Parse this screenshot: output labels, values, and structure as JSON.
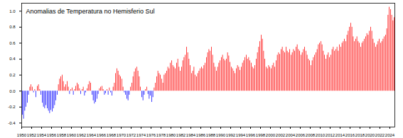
{
  "chart_data": {
    "type": "bar",
    "title": "Anomalias de Temperatura no Hemisferio Sul",
    "x": [
      1950,
      1950.25,
      1950.5,
      1950.75,
      1951,
      1951.25,
      1951.5,
      1951.75,
      1952,
      1952.25,
      1952.5,
      1952.75,
      1953,
      1953.25,
      1953.5,
      1953.75,
      1954,
      1954.25,
      1954.5,
      1954.75,
      1955,
      1955.25,
      1955.5,
      1955.75,
      1956,
      1956.25,
      1956.5,
      1956.75,
      1957,
      1957.25,
      1957.5,
      1957.75,
      1958,
      1958.25,
      1958.5,
      1958.75,
      1959,
      1959.25,
      1959.5,
      1959.75,
      1960,
      1960.25,
      1960.5,
      1960.75,
      1961,
      1961.25,
      1961.5,
      1961.75,
      1962,
      1962.25,
      1962.5,
      1962.75,
      1963,
      1963.25,
      1963.5,
      1963.75,
      1964,
      1964.25,
      1964.5,
      1964.75,
      1965,
      1965.25,
      1965.5,
      1965.75,
      1966,
      1966.25,
      1966.5,
      1966.75,
      1967,
      1967.25,
      1967.5,
      1967.75,
      1968,
      1968.25,
      1968.5,
      1968.75,
      1969,
      1969.25,
      1969.5,
      1969.75,
      1970,
      1970.25,
      1970.5,
      1970.75,
      1971,
      1971.25,
      1971.5,
      1971.75,
      1972,
      1972.25,
      1972.5,
      1972.75,
      1973,
      1973.25,
      1973.5,
      1973.75,
      1974,
      1974.25,
      1974.5,
      1974.75,
      1975,
      1975.25,
      1975.5,
      1975.75,
      1976,
      1976.25,
      1976.5,
      1976.75,
      1977,
      1977.25,
      1977.5,
      1977.75,
      1978,
      1978.25,
      1978.5,
      1978.75,
      1979,
      1979.25,
      1979.5,
      1979.75,
      1980,
      1980.25,
      1980.5,
      1980.75,
      1981,
      1981.25,
      1981.5,
      1981.75,
      1982,
      1982.25,
      1982.5,
      1982.75,
      1983,
      1983.25,
      1983.5,
      1983.75,
      1984,
      1984.25,
      1984.5,
      1984.75,
      1985,
      1985.25,
      1985.5,
      1985.75,
      1986,
      1986.25,
      1986.5,
      1986.75,
      1987,
      1987.25,
      1987.5,
      1987.75,
      1988,
      1988.25,
      1988.5,
      1988.75,
      1989,
      1989.25,
      1989.5,
      1989.75,
      1990,
      1990.25,
      1990.5,
      1990.75,
      1991,
      1991.25,
      1991.5,
      1991.75,
      1992,
      1992.25,
      1992.5,
      1992.75,
      1993,
      1993.25,
      1993.5,
      1993.75,
      1994,
      1994.25,
      1994.5,
      1994.75,
      1995,
      1995.25,
      1995.5,
      1995.75,
      1996,
      1996.25,
      1996.5,
      1996.75,
      1997,
      1997.25,
      1997.5,
      1997.75,
      1998,
      1998.25,
      1998.5,
      1998.75,
      1999,
      1999.25,
      1999.5,
      1999.75,
      2000,
      2000.25,
      2000.5,
      2000.75,
      2001,
      2001.25,
      2001.5,
      2001.75,
      2002,
      2002.25,
      2002.5,
      2002.75,
      2003,
      2003.25,
      2003.5,
      2003.75,
      2004,
      2004.25,
      2004.5,
      2004.75,
      2005,
      2005.25,
      2005.5,
      2005.75,
      2006,
      2006.25,
      2006.5,
      2006.75,
      2007,
      2007.25,
      2007.5,
      2007.75,
      2008,
      2008.25,
      2008.5,
      2008.75,
      2009,
      2009.25,
      2009.5,
      2009.75,
      2010,
      2010.25,
      2010.5,
      2010.75,
      2011,
      2011.25,
      2011.5,
      2011.75,
      2012,
      2012.25,
      2012.5,
      2012.75,
      2013,
      2013.25,
      2013.5,
      2013.75,
      2014,
      2014.25,
      2014.5,
      2014.75,
      2015,
      2015.25,
      2015.5,
      2015.75,
      2016,
      2016.25,
      2016.5,
      2016.75,
      2017,
      2017.25,
      2017.5,
      2017.75,
      2018,
      2018.25,
      2018.5,
      2018.75,
      2019,
      2019.25,
      2019.5,
      2019.75,
      2020,
      2020.25,
      2020.5,
      2020.75,
      2021,
      2021.25,
      2021.5,
      2021.75,
      2022,
      2022.25,
      2022.5,
      2022.75,
      2023,
      2023.25,
      2023.5,
      2023.75,
      2024,
      2024.25,
      2024.5,
      2024.75
    ],
    "values": [
      -0.3,
      -0.35,
      -0.25,
      -0.2,
      -0.15,
      -0.05,
      0.05,
      0.08,
      0.05,
      -0.02,
      0.02,
      -0.08,
      0.06,
      0.08,
      0.02,
      -0.05,
      -0.15,
      -0.2,
      -0.22,
      -0.18,
      -0.22,
      -0.25,
      -0.28,
      -0.24,
      -0.26,
      -0.22,
      -0.18,
      -0.12,
      -0.05,
      0.08,
      0.15,
      0.18,
      0.2,
      0.12,
      0.05,
      0.08,
      0.12,
      0.05,
      -0.04,
      0.02,
      0.04,
      -0.05,
      0.02,
      0.06,
      0.1,
      0.08,
      0.03,
      -0.04,
      0.02,
      0.05,
      -0.06,
      -0.02,
      0.03,
      0.08,
      0.12,
      0.1,
      -0.05,
      -0.12,
      -0.16,
      -0.14,
      -0.1,
      -0.04,
      0.03,
      0.05,
      0.06,
      0.02,
      -0.05,
      -0.03,
      0.02,
      -0.05,
      0.04,
      -0.02,
      -0.06,
      0.05,
      0.1,
      0.22,
      0.28,
      0.25,
      0.2,
      0.18,
      0.15,
      0.05,
      -0.02,
      -0.05,
      -0.1,
      -0.12,
      -0.05,
      0.05,
      0.1,
      0.18,
      0.24,
      0.28,
      0.3,
      0.25,
      0.18,
      0.05,
      -0.08,
      -0.12,
      -0.05,
      0.02,
      0.05,
      -0.04,
      -0.1,
      -0.06,
      -0.14,
      -0.08,
      0.04,
      0.1,
      0.18,
      0.25,
      0.22,
      0.2,
      0.15,
      0.1,
      0.2,
      0.22,
      0.25,
      0.3,
      0.28,
      0.35,
      0.38,
      0.32,
      0.3,
      0.28,
      0.35,
      0.4,
      0.3,
      0.25,
      0.3,
      0.38,
      0.42,
      0.45,
      0.55,
      0.48,
      0.4,
      0.32,
      0.22,
      0.25,
      0.3,
      0.2,
      0.18,
      0.22,
      0.25,
      0.28,
      0.3,
      0.28,
      0.32,
      0.35,
      0.42,
      0.48,
      0.52,
      0.5,
      0.55,
      0.45,
      0.35,
      0.3,
      0.25,
      0.3,
      0.35,
      0.38,
      0.42,
      0.45,
      0.4,
      0.38,
      0.4,
      0.48,
      0.44,
      0.36,
      0.3,
      0.28,
      0.25,
      0.22,
      0.28,
      0.32,
      0.3,
      0.26,
      0.3,
      0.35,
      0.38,
      0.42,
      0.45,
      0.4,
      0.42,
      0.38,
      0.35,
      0.3,
      0.28,
      0.32,
      0.4,
      0.48,
      0.55,
      0.62,
      0.7,
      0.65,
      0.5,
      0.4,
      0.3,
      0.28,
      0.32,
      0.3,
      0.28,
      0.32,
      0.35,
      0.3,
      0.38,
      0.45,
      0.48,
      0.46,
      0.52,
      0.55,
      0.5,
      0.48,
      0.55,
      0.5,
      0.48,
      0.52,
      0.45,
      0.48,
      0.52,
      0.5,
      0.55,
      0.58,
      0.52,
      0.5,
      0.45,
      0.48,
      0.52,
      0.55,
      0.5,
      0.45,
      0.4,
      0.38,
      0.32,
      0.38,
      0.42,
      0.45,
      0.48,
      0.52,
      0.58,
      0.6,
      0.62,
      0.58,
      0.5,
      0.45,
      0.4,
      0.45,
      0.48,
      0.42,
      0.45,
      0.52,
      0.55,
      0.5,
      0.52,
      0.55,
      0.5,
      0.58,
      0.55,
      0.6,
      0.62,
      0.65,
      0.62,
      0.7,
      0.75,
      0.8,
      0.85,
      0.8,
      0.68,
      0.62,
      0.65,
      0.68,
      0.62,
      0.6,
      0.55,
      0.6,
      0.62,
      0.65,
      0.68,
      0.72,
      0.7,
      0.75,
      0.8,
      0.75,
      0.65,
      0.6,
      0.55,
      0.58,
      0.62,
      0.65,
      0.6,
      0.62,
      0.65,
      0.68,
      0.7,
      0.78,
      0.95,
      1.05,
      1.02,
      0.95,
      0.88,
      0.92
    ],
    "colors": [
      "blue",
      "blue",
      "blue",
      "blue",
      "blue",
      "blue",
      "red",
      "red",
      "red",
      "blue",
      "red",
      "blue",
      "red",
      "red",
      "red",
      "blue",
      "blue",
      "blue",
      "blue",
      "blue",
      "blue",
      "blue",
      "blue",
      "blue",
      "blue",
      "blue",
      "blue",
      "blue",
      "blue",
      "red",
      "red",
      "red",
      "red",
      "red",
      "red",
      "red",
      "red",
      "red",
      "blue",
      "red",
      "red",
      "blue",
      "red",
      "red",
      "red",
      "red",
      "red",
      "blue",
      "red",
      "red",
      "blue",
      "blue",
      "red",
      "red",
      "red",
      "red",
      "blue",
      "blue",
      "blue",
      "blue",
      "blue",
      "blue",
      "red",
      "red",
      "red",
      "red",
      "blue",
      "blue",
      "red",
      "blue",
      "red",
      "blue",
      "blue",
      "red",
      "red",
      "red",
      "red",
      "red",
      "red",
      "red",
      "red",
      "red",
      "blue",
      "blue",
      "blue",
      "blue",
      "blue",
      "red",
      "red",
      "red",
      "red",
      "red",
      "red",
      "red",
      "red",
      "red",
      "blue",
      "blue",
      "blue",
      "red",
      "red",
      "blue",
      "blue",
      "blue",
      "blue",
      "blue",
      "red",
      "red",
      "red",
      "red",
      "red",
      "red",
      "red",
      "red",
      "red",
      "red",
      "red",
      "red",
      "red",
      "red",
      "red",
      "red",
      "red",
      "red",
      "red",
      "red",
      "red",
      "red",
      "red",
      "red",
      "red",
      "red",
      "red",
      "red",
      "red",
      "red",
      "red",
      "red",
      "red",
      "red",
      "red",
      "red",
      "red",
      "red",
      "red",
      "red",
      "red",
      "red",
      "red",
      "red",
      "red",
      "red",
      "red",
      "red",
      "red",
      "red",
      "red",
      "red",
      "red",
      "red",
      "red",
      "red",
      "red",
      "red",
      "red",
      "red",
      "red",
      "red",
      "red",
      "red",
      "red",
      "red",
      "red",
      "red",
      "red",
      "red",
      "red",
      "red",
      "red",
      "red",
      "red",
      "red",
      "red",
      "red",
      "red",
      "red",
      "red",
      "red",
      "red",
      "red",
      "red",
      "red",
      "red",
      "red",
      "red",
      "red",
      "red",
      "red",
      "red",
      "red",
      "red",
      "red",
      "red",
      "red",
      "red",
      "red",
      "red",
      "red",
      "red",
      "red",
      "red",
      "red",
      "red",
      "red",
      "red",
      "red",
      "red",
      "red",
      "red",
      "red",
      "red",
      "red",
      "red",
      "red",
      "red",
      "red",
      "red",
      "red",
      "red",
      "red",
      "red",
      "red",
      "red",
      "red",
      "red",
      "red",
      "red",
      "red",
      "red",
      "red",
      "red",
      "red",
      "red",
      "red",
      "red",
      "red",
      "red",
      "red",
      "red",
      "red",
      "red",
      "red",
      "red",
      "red",
      "red",
      "red",
      "red",
      "red",
      "red",
      "red",
      "red",
      "red",
      "red",
      "red",
      "red",
      "red",
      "red",
      "red",
      "red",
      "red",
      "red",
      "red",
      "red",
      "red",
      "red",
      "red",
      "red",
      "red",
      "red",
      "red",
      "red",
      "red",
      "red",
      "red",
      "red",
      "red",
      "red",
      "red",
      "red",
      "red",
      "red",
      "red",
      "red",
      "red",
      "red",
      "red",
      "red",
      "red",
      "red",
      "red"
    ],
    "xlim": [
      1950,
      2025
    ],
    "xticks": [
      1950,
      1952,
      1954,
      1956,
      1958,
      1960,
      1962,
      1964,
      1966,
      1968,
      1970,
      1972,
      1974,
      1976,
      1978,
      1980,
      1982,
      1984,
      1986,
      1988,
      1990,
      1992,
      1994,
      1996,
      1998,
      2000,
      2002,
      2004,
      2006,
      2008,
      2010,
      2012,
      2014,
      2016,
      2018,
      2020,
      2022,
      2024
    ],
    "ylim": [
      -0.45,
      1.1
    ],
    "yticks": [
      -0.4,
      -0.2,
      {
        "value": 0,
        "label": "0.0"
      },
      0.2,
      0.4,
      0.6,
      0.8,
      {
        "value": 1,
        "label": "1.0"
      }
    ],
    "grid": false
  }
}
